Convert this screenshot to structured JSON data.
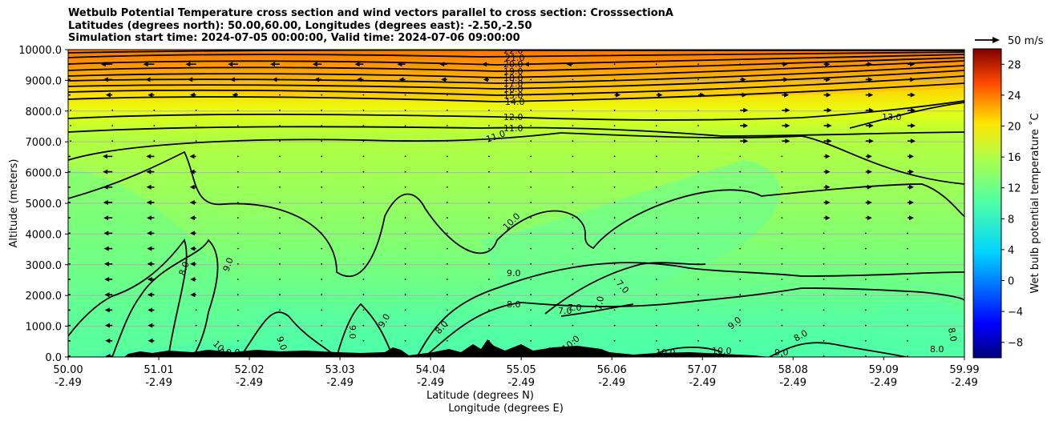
{
  "chart_data": {
    "type": "heatmap",
    "title_lines": [
      "Wetbulb Potential Temperature cross section and wind vectors parallel to cross section: CrosssectionA",
      "Latitudes (degrees north): 50.00,60.00, Longitudes (degrees east): -2.50,-2.50",
      "Simulation start time: 2024-07-05 00:00:00, Valid time: 2024-07-06 09:00:00"
    ],
    "ylabel": "Altitude (meters)",
    "xlabel": "Latitude (degrees N)",
    "xlabel2": "Longitude (degrees E)",
    "ylim": [
      0,
      10000
    ],
    "y_ticks": [
      "0.0",
      "1000.0",
      "2000.0",
      "3000.0",
      "4000.0",
      "5000.0",
      "6000.0",
      "7000.0",
      "8000.0",
      "9000.0",
      "10000.0"
    ],
    "x_ticks_lat": [
      "50.00",
      "51.01",
      "52.02",
      "53.03",
      "54.04",
      "55.05",
      "56.06",
      "57.07",
      "58.08",
      "59.09",
      "59.99"
    ],
    "x_ticks_lon": [
      "-2.49",
      "-2.49",
      "-2.49",
      "-2.49",
      "-2.49",
      "-2.49",
      "-2.49",
      "-2.49",
      "-2.49",
      "-2.49",
      "-2.49"
    ],
    "xlim": [
      50.0,
      59.99
    ],
    "colorbar": {
      "label": "Wet bulb potential temperature ˚C",
      "ticks": [
        "−8",
        "−4",
        "0",
        "4",
        "8",
        "12",
        "16",
        "20",
        "24",
        "28"
      ],
      "range": [
        -10,
        30
      ]
    },
    "wind_key": "50 m/s",
    "contour_levels_labeled": [
      "22.0",
      "21.0",
      "20.0",
      "19.0",
      "18.0",
      "17.0",
      "16.0",
      "15.0",
      "14.0",
      "12.0",
      "11.0",
      "11.0",
      "13.0",
      "10.0",
      "9.0",
      "8.0",
      "7.0",
      "7.0",
      "7.0",
      "7.0",
      "9.0",
      "8.0",
      "9.0",
      "10.0",
      "10.0",
      "9.0",
      "9.0",
      "8.0",
      "8.0",
      "8.0",
      "9.0",
      "10.0",
      "10.0",
      "10.0",
      "10.0",
      "9.0",
      "8.0"
    ],
    "colors": {
      "grid": "#b0b0b0",
      "terrain": "#000000"
    }
  }
}
